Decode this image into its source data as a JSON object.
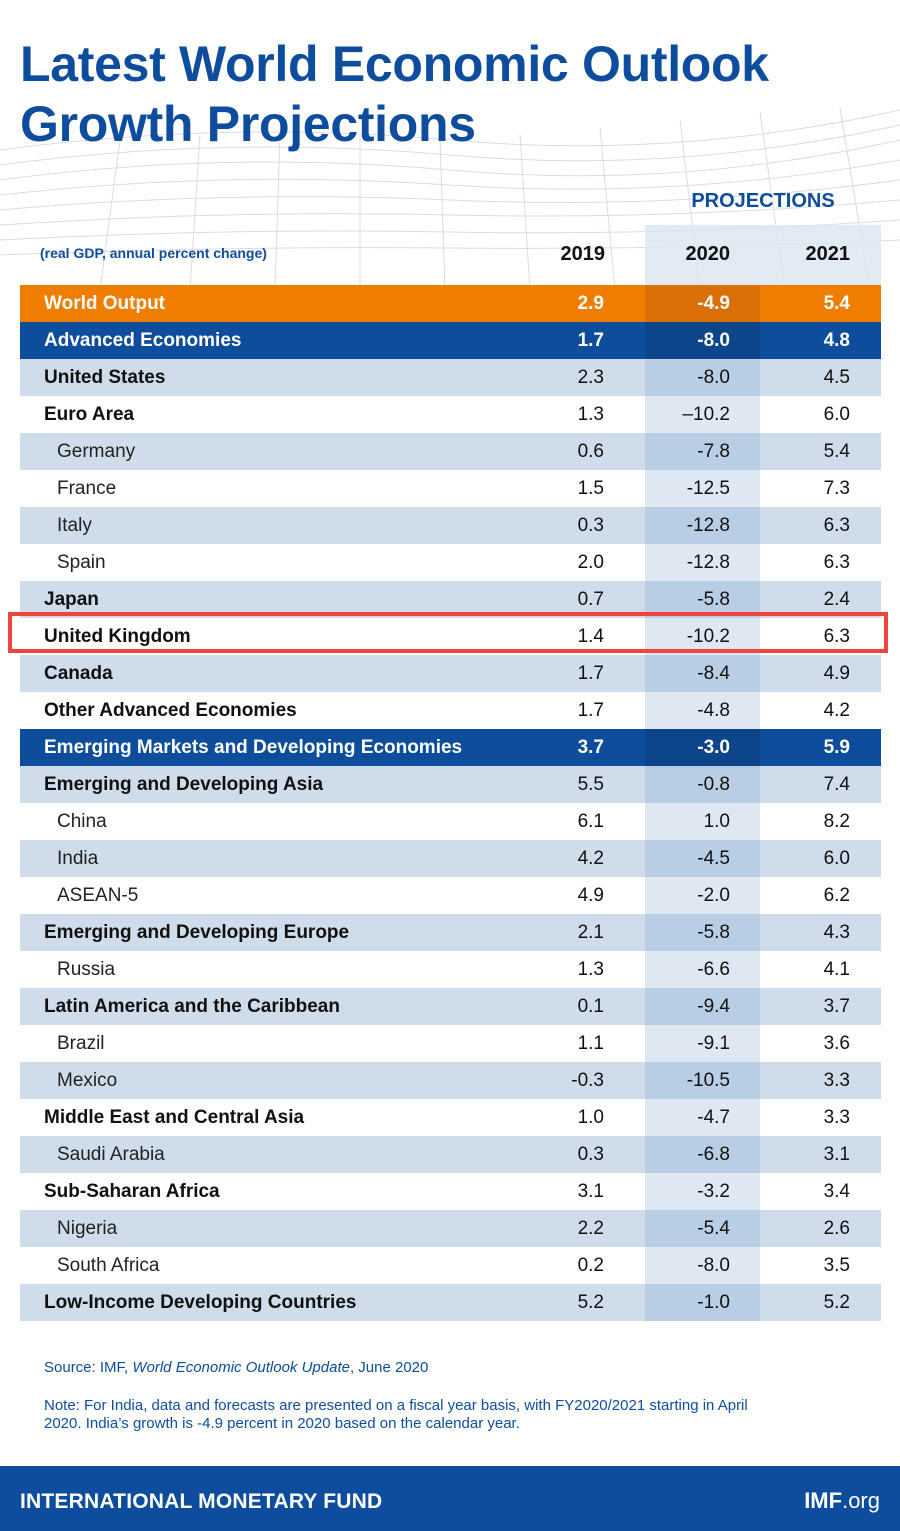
{
  "title_line1": "Latest World Economic Outlook",
  "title_line2": "Growth Projections",
  "projections_label": "PROJECTIONS",
  "units_label": "(real GDP, annual percent change)",
  "colors": {
    "brand_blue": "#0e4d9d",
    "world_orange": "#ef7d00",
    "highlight_red": "#f0433f"
  },
  "source": {
    "prefix": "Source: IMF, ",
    "title": "World Economic Outlook Update",
    "suffix": ", June 2020"
  },
  "note": "Note: For India, data and forecasts are presented on a fiscal year basis, with FY2020/2021 starting in April 2020. India’s growth is -4.9 percent in 2020 based on the calendar year.",
  "footer": {
    "org": "INTERNATIONAL MONETARY FUND",
    "site_bold": "IMF",
    "site_rest": ".org"
  },
  "chart_data": {
    "type": "table",
    "title": "Latest World Economic Outlook Growth Projections",
    "subtitle": "(real GDP, annual percent change)",
    "columns": [
      "2019",
      "2020",
      "2021"
    ],
    "highlighted_row": "United Kingdom",
    "rows": [
      {
        "name": "World Output",
        "level": "header-orange",
        "values": [
          "2.9",
          "-4.9",
          "5.4"
        ]
      },
      {
        "name": "Advanced Economies",
        "level": "header-blue",
        "values": [
          "1.7",
          "-8.0",
          "4.8"
        ]
      },
      {
        "name": "United States",
        "level": "group",
        "values": [
          "2.3",
          "-8.0",
          "4.5"
        ]
      },
      {
        "name": "Euro Area",
        "level": "group",
        "values": [
          "1.3",
          "–10.2",
          "6.0"
        ]
      },
      {
        "name": "Germany",
        "level": "sub",
        "values": [
          "0.6",
          "-7.8",
          "5.4"
        ]
      },
      {
        "name": "France",
        "level": "sub",
        "values": [
          "1.5",
          "-12.5",
          "7.3"
        ]
      },
      {
        "name": "Italy",
        "level": "sub",
        "values": [
          "0.3",
          "-12.8",
          "6.3"
        ]
      },
      {
        "name": "Spain",
        "level": "sub",
        "values": [
          "2.0",
          "-12.8",
          "6.3"
        ]
      },
      {
        "name": "Japan",
        "level": "group",
        "values": [
          "0.7",
          "-5.8",
          "2.4"
        ]
      },
      {
        "name": "United Kingdom",
        "level": "group",
        "values": [
          "1.4",
          "-10.2",
          "6.3"
        ]
      },
      {
        "name": "Canada",
        "level": "group",
        "values": [
          "1.7",
          "-8.4",
          "4.9"
        ]
      },
      {
        "name": "Other Advanced Economies",
        "level": "group",
        "values": [
          "1.7",
          "-4.8",
          "4.2"
        ]
      },
      {
        "name": "Emerging Markets and Developing Economies",
        "level": "header-blue",
        "values": [
          "3.7",
          "-3.0",
          "5.9"
        ]
      },
      {
        "name": "Emerging and Developing Asia",
        "level": "group",
        "values": [
          "5.5",
          "-0.8",
          "7.4"
        ]
      },
      {
        "name": "China",
        "level": "sub",
        "values": [
          "6.1",
          "1.0",
          "8.2"
        ]
      },
      {
        "name": "India",
        "level": "sub",
        "values": [
          "4.2",
          "-4.5",
          "6.0"
        ]
      },
      {
        "name": "ASEAN-5",
        "level": "sub",
        "values": [
          "4.9",
          "-2.0",
          "6.2"
        ]
      },
      {
        "name": "Emerging and Developing Europe",
        "level": "group",
        "values": [
          "2.1",
          "-5.8",
          "4.3"
        ]
      },
      {
        "name": "Russia",
        "level": "sub",
        "values": [
          "1.3",
          "-6.6",
          "4.1"
        ]
      },
      {
        "name": "Latin America and the Caribbean",
        "level": "group",
        "values": [
          "0.1",
          "-9.4",
          "3.7"
        ]
      },
      {
        "name": "Brazil",
        "level": "sub",
        "values": [
          "1.1",
          "-9.1",
          "3.6"
        ]
      },
      {
        "name": "Mexico",
        "level": "sub",
        "values": [
          "-0.3",
          "-10.5",
          "3.3"
        ]
      },
      {
        "name": "Middle East and Central Asia",
        "level": "group",
        "values": [
          "1.0",
          "-4.7",
          "3.3"
        ]
      },
      {
        "name": "Saudi Arabia",
        "level": "sub",
        "values": [
          "0.3",
          "-6.8",
          "3.1"
        ]
      },
      {
        "name": "Sub-Saharan Africa",
        "level": "group",
        "values": [
          "3.1",
          "-3.2",
          "3.4"
        ]
      },
      {
        "name": "Nigeria",
        "level": "sub",
        "values": [
          "2.2",
          "-5.4",
          "2.6"
        ]
      },
      {
        "name": "South Africa",
        "level": "sub",
        "values": [
          "0.2",
          "-8.0",
          "3.5"
        ]
      },
      {
        "name": "Low-Income Developing Countries",
        "level": "group",
        "values": [
          "5.2",
          "-1.0",
          "5.2"
        ]
      }
    ]
  }
}
